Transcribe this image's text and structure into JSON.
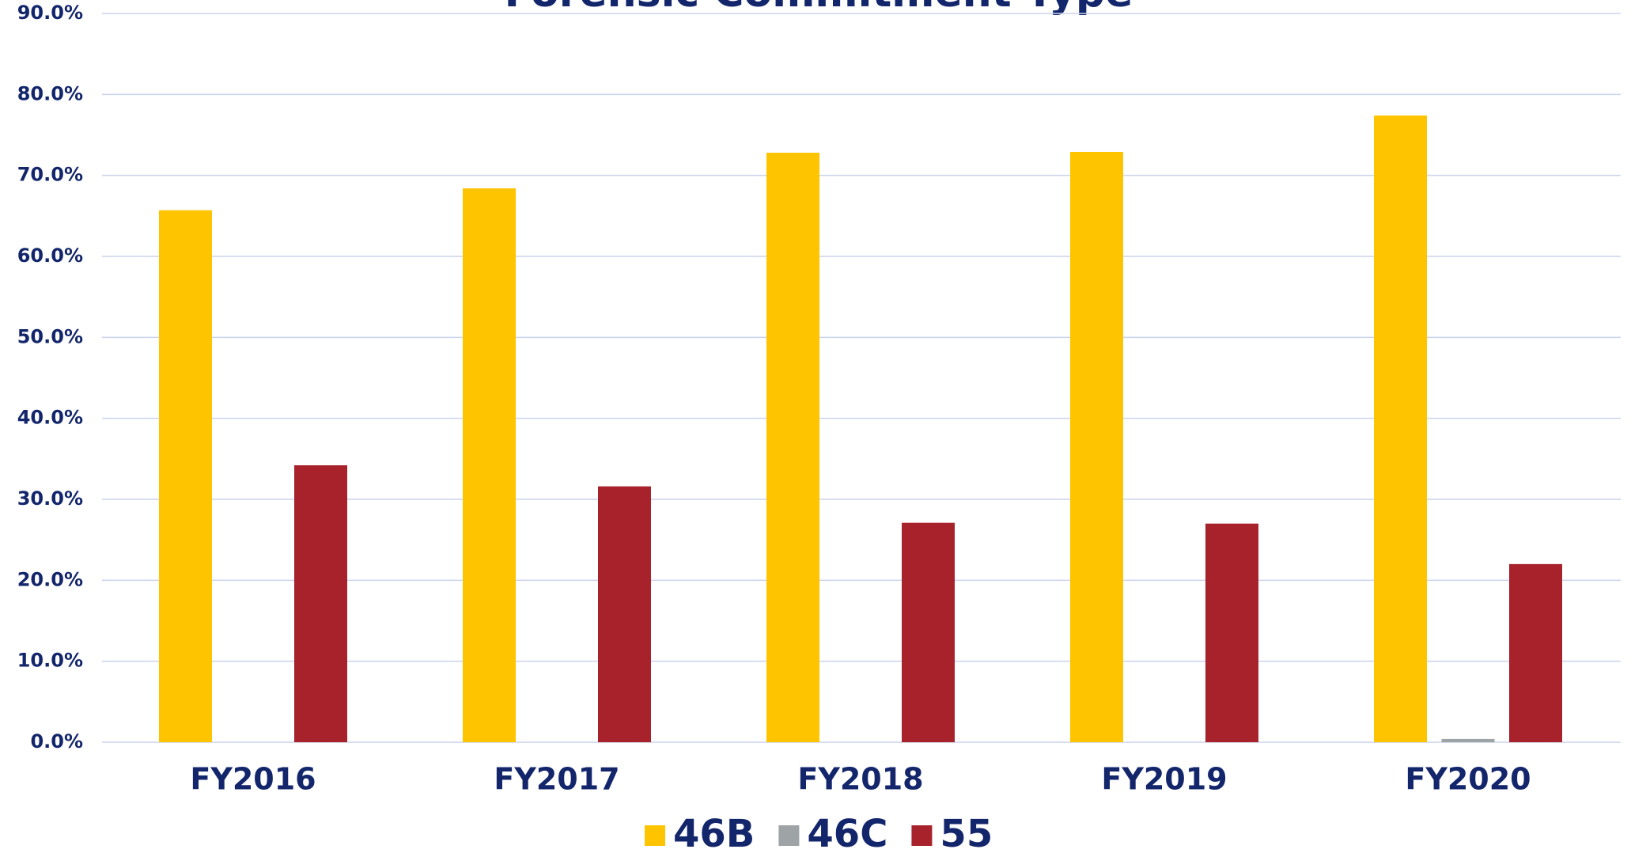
{
  "chart_data": {
    "type": "bar",
    "title": "Forensic Commitment Type",
    "categories": [
      "FY2016",
      "FY2017",
      "FY2018",
      "FY2019",
      "FY2020"
    ],
    "series": [
      {
        "name": "46B",
        "color": "#ffc400",
        "values": [
          65.7,
          68.4,
          72.8,
          72.9,
          77.4
        ]
      },
      {
        "name": "46C",
        "color": "#9ea3a6",
        "values": [
          0,
          0,
          0,
          0,
          0.4
        ]
      },
      {
        "name": "55",
        "color": "#a8222b",
        "values": [
          34.2,
          31.6,
          27.1,
          27.0,
          22.0
        ]
      }
    ],
    "ylim": [
      0,
      90
    ],
    "yticks": [
      {
        "value": 0,
        "label": "0.0%"
      },
      {
        "value": 10,
        "label": "10.0%"
      },
      {
        "value": 20,
        "label": "20.0%"
      },
      {
        "value": 30,
        "label": "30.0%"
      },
      {
        "value": 40,
        "label": "40.0%"
      },
      {
        "value": 50,
        "label": "50.0%"
      },
      {
        "value": 60,
        "label": "60.0%"
      },
      {
        "value": 70,
        "label": "70.0%"
      },
      {
        "value": 80,
        "label": "80.0%"
      },
      {
        "value": 90,
        "label": "90.0%"
      }
    ],
    "grid": true,
    "legend": "bottom"
  }
}
